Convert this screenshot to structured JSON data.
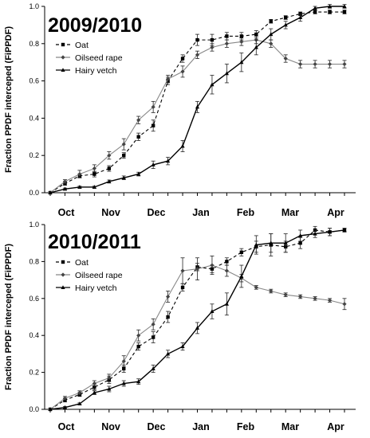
{
  "chart_data": [
    {
      "type": "line",
      "title": "2009/2010",
      "ylabel": "Fraction PPDF interceped (FiPPDF)",
      "xlabel": "",
      "ylim": [
        0,
        1.0
      ],
      "yticks": [
        "0.0",
        "0.2",
        "0.4",
        "0.6",
        "0.8",
        "1.0"
      ],
      "month_labels": [
        "Oct",
        "Nov",
        "Dec",
        "Jan",
        "Feb",
        "Mar",
        "Apr"
      ],
      "grid": false,
      "legend_position": "top-left",
      "series": [
        {
          "name": "Oat",
          "style": "dashed",
          "marker": "square",
          "color": "#000000",
          "values": [
            0.0,
            0.05,
            0.09,
            0.1,
            0.13,
            0.2,
            0.3,
            0.36,
            0.6,
            0.72,
            0.82,
            0.82,
            0.84,
            0.84,
            0.85,
            0.92,
            0.94,
            0.96,
            0.97,
            0.97,
            0.97
          ],
          "errors": [
            0,
            0.01,
            0.01,
            0.015,
            0.015,
            0.015,
            0.02,
            0.03,
            0.02,
            0.02,
            0.03,
            0.03,
            0.02,
            0.02,
            0.02,
            0.01,
            0.01,
            0.01,
            0.01,
            0.01,
            0.01
          ]
        },
        {
          "name": "Oilseed rape",
          "style": "solid-gray",
          "marker": "diamond",
          "color": "#888888",
          "values": [
            0.0,
            0.06,
            0.1,
            0.13,
            0.2,
            0.26,
            0.39,
            0.46,
            0.61,
            0.65,
            0.74,
            0.78,
            0.8,
            0.81,
            0.82,
            0.8,
            0.72,
            0.69,
            0.69,
            0.69,
            0.69
          ],
          "errors": [
            0,
            0.01,
            0.02,
            0.02,
            0.02,
            0.03,
            0.02,
            0.03,
            0.02,
            0.03,
            0.02,
            0.02,
            0.02,
            0.02,
            0.02,
            0.02,
            0.02,
            0.02,
            0.02,
            0.02,
            0.02
          ]
        },
        {
          "name": "Hairy vetch",
          "style": "solid-black",
          "marker": "triangle",
          "color": "#000000",
          "values": [
            0.0,
            0.02,
            0.03,
            0.03,
            0.06,
            0.08,
            0.1,
            0.15,
            0.17,
            0.25,
            0.46,
            0.58,
            0.64,
            0.7,
            0.78,
            0.85,
            0.9,
            0.94,
            0.99,
            1.0,
            1.0
          ],
          "errors": [
            0,
            0.005,
            0.005,
            0.005,
            0.008,
            0.01,
            0.01,
            0.02,
            0.02,
            0.03,
            0.03,
            0.05,
            0.05,
            0.05,
            0.04,
            0.03,
            0.02,
            0.02,
            0.01,
            0.01,
            0.01
          ]
        }
      ]
    },
    {
      "type": "line",
      "title": "2010/2011",
      "ylabel": "Fraction PPDF interceped (FiPPDF)",
      "xlabel": "",
      "ylim": [
        0,
        1.0
      ],
      "yticks": [
        "0.0",
        "0.2",
        "0.4",
        "0.6",
        "0.8",
        "1.0"
      ],
      "month_labels": [
        "Oct",
        "Nov",
        "Dec",
        "Jan",
        "Feb",
        "Mar",
        "Apr"
      ],
      "grid": false,
      "legend_position": "top-left",
      "series": [
        {
          "name": "Oat",
          "style": "dashed",
          "marker": "square",
          "color": "#000000",
          "values": [
            0.0,
            0.05,
            0.08,
            0.12,
            0.16,
            0.22,
            0.34,
            0.39,
            0.5,
            0.66,
            0.77,
            0.76,
            0.8,
            0.85,
            0.88,
            0.89,
            0.88,
            0.9,
            0.97,
            0.96,
            0.97
          ],
          "errors": [
            0,
            0.01,
            0.01,
            0.015,
            0.02,
            0.02,
            0.02,
            0.03,
            0.03,
            0.02,
            0.02,
            0.02,
            0.02,
            0.02,
            0.03,
            0.06,
            0.03,
            0.03,
            0.02,
            0.02,
            0.01
          ]
        },
        {
          "name": "Oilseed rape",
          "style": "solid-gray",
          "marker": "diamond",
          "color": "#888888",
          "values": [
            0.0,
            0.06,
            0.09,
            0.14,
            0.17,
            0.26,
            0.4,
            0.46,
            0.61,
            0.75,
            0.76,
            0.78,
            0.75,
            0.71,
            0.66,
            0.64,
            0.62,
            0.61,
            0.6,
            0.59,
            0.57
          ],
          "errors": [
            0,
            0.01,
            0.01,
            0.015,
            0.02,
            0.03,
            0.03,
            0.03,
            0.03,
            0.07,
            0.06,
            0.05,
            0.03,
            0.02,
            0.01,
            0.01,
            0.01,
            0.01,
            0.01,
            0.01,
            0.03
          ]
        },
        {
          "name": "Hairy vetch",
          "style": "solid-black",
          "marker": "triangle",
          "color": "#000000",
          "values": [
            0.0,
            0.01,
            0.03,
            0.09,
            0.11,
            0.14,
            0.15,
            0.22,
            0.3,
            0.34,
            0.44,
            0.53,
            0.57,
            0.72,
            0.89,
            0.9,
            0.9,
            0.94,
            0.95,
            0.96,
            0.97
          ],
          "errors": [
            0,
            0.005,
            0.005,
            0.01,
            0.015,
            0.015,
            0.015,
            0.02,
            0.02,
            0.02,
            0.03,
            0.04,
            0.06,
            0.06,
            0.05,
            0.05,
            0.05,
            0.03,
            0.02,
            0.02,
            0.01
          ]
        }
      ]
    }
  ]
}
